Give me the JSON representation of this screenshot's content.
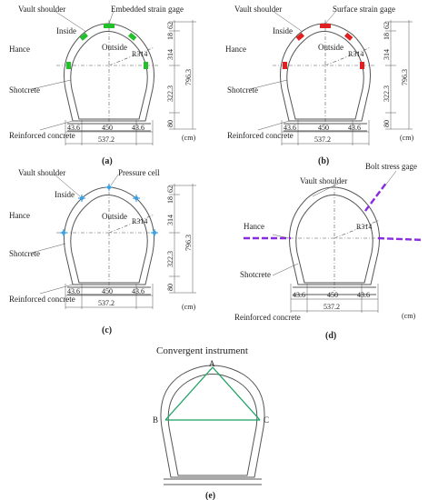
{
  "panels": [
    {
      "id": "a",
      "caption": "(a)",
      "labels": {
        "vault_shoulder": "Vault shoulder",
        "gauge": "Embedded strain gage",
        "inside": "Inside",
        "outside": "Outside",
        "hance": "Hance",
        "shotcrete": "Shotcrete",
        "concrete": "Reinforced concrete",
        "radius": "R314"
      },
      "instrument_color": "#22c02a",
      "dims": {
        "right": [
          "62",
          "18",
          "314",
          "796.3",
          "322.3",
          "80"
        ],
        "bottom": [
          "43.6",
          "450",
          "43.6",
          "537.2"
        ],
        "unit": "(cm)"
      }
    },
    {
      "id": "b",
      "caption": "(b)",
      "labels": {
        "vault_shoulder": "Vault shoulder",
        "gauge": "Surface strain gage",
        "inside": "Inside",
        "outside": "Outside",
        "hance": "Hance",
        "shotcrete": "Shotcrete",
        "concrete": "Reinforced concrete",
        "radius": "R314"
      },
      "instrument_color": "#e02020",
      "dims": {
        "right": [
          "62",
          "18",
          "314",
          "796.3",
          "322.3",
          "80"
        ],
        "bottom": [
          "43.6",
          "450",
          "43.6",
          "537.2"
        ],
        "unit": "(cm)"
      }
    },
    {
      "id": "c",
      "caption": "(c)",
      "labels": {
        "vault_shoulder": "Vault shoulder",
        "gauge": "Pressure cell",
        "inside": "Inside",
        "outside": "Outside",
        "hance": "Hance",
        "shotcrete": "Shotcrete",
        "concrete": "Reinforced concrete",
        "radius": "R314"
      },
      "instrument_color": "#3fa0e0",
      "dims": {
        "right": [
          "62",
          "18",
          "314",
          "796.3",
          "322.3",
          "80"
        ],
        "bottom": [
          "43.6",
          "450",
          "43.6",
          "537.2"
        ],
        "unit": "(cm)"
      }
    },
    {
      "id": "d",
      "caption": "(d)",
      "labels": {
        "vault_shoulder": "Vault shoulder",
        "gauge": "Bolt stress gage",
        "hance": "Hance",
        "shotcrete": "Shotcrete",
        "concrete": "Reinforced concrete",
        "radius": "R314"
      },
      "instrument_color": "#8a2be2",
      "dims": {
        "bottom": [
          "43.6",
          "450",
          "43.6",
          "537.2"
        ],
        "unit": "(cm)"
      }
    }
  ],
  "panel_e": {
    "title": "Convergent instrument",
    "caption": "(e)",
    "points": [
      "A",
      "B",
      "C"
    ],
    "line_color": "#1aa060"
  }
}
